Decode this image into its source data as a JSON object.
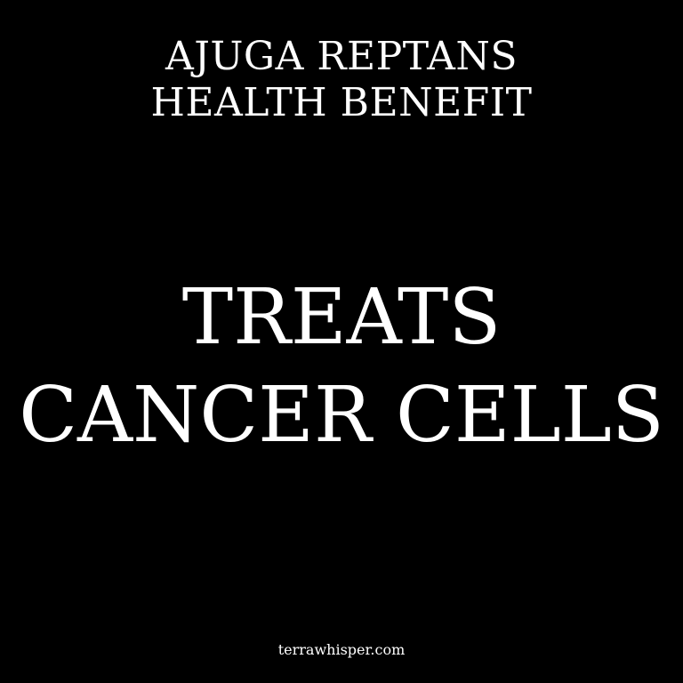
{
  "header": {
    "line1": "AJUGA REPTANS",
    "line2": "HEALTH BENEFIT"
  },
  "headline": {
    "line1": "TREATS",
    "line2": "CANCER CELLS"
  },
  "footer": {
    "site": "terrawhisper.com"
  },
  "colors": {
    "background": "#000000",
    "text": "#ffffff"
  }
}
